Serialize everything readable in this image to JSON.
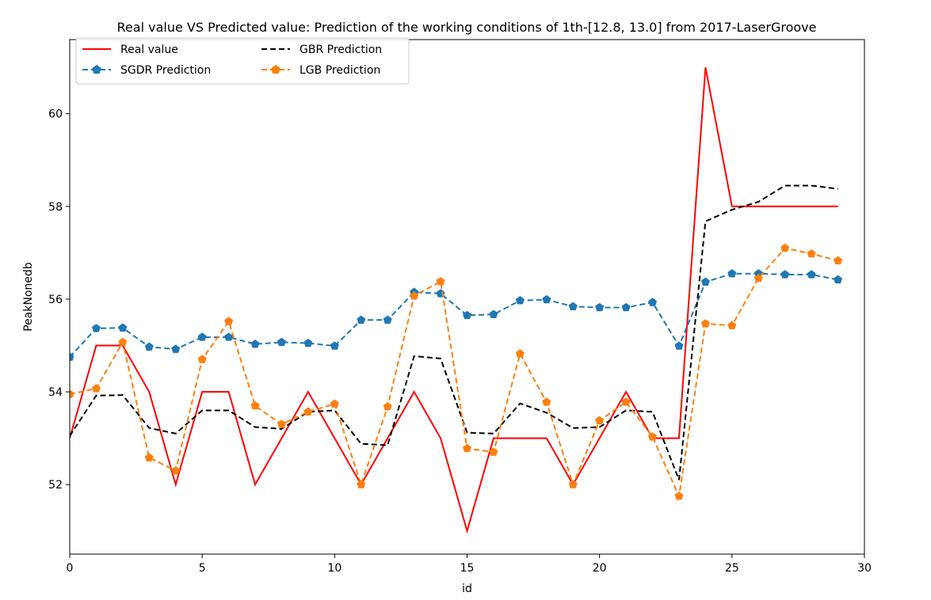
{
  "chart_data": {
    "type": "line",
    "title": "Real value VS Predicted value: Prediction of the working conditions of 1th-[12.8, 13.0] from 2017-LaserGroove",
    "xlabel": "id",
    "ylabel": "PeakNonedb",
    "xlim": [
      0,
      30
    ],
    "ylim": [
      50.5,
      61.6
    ],
    "xticks": [
      0,
      5,
      10,
      15,
      20,
      25,
      30
    ],
    "yticks": [
      52,
      54,
      56,
      58,
      60
    ],
    "legend_position": "top-left",
    "x": [
      0,
      1,
      2,
      3,
      4,
      5,
      6,
      7,
      8,
      9,
      10,
      11,
      12,
      13,
      14,
      15,
      16,
      17,
      18,
      19,
      20,
      21,
      22,
      23,
      24,
      25,
      26,
      27,
      28,
      29
    ],
    "series": [
      {
        "name": "Real value",
        "color": "#ff0000",
        "style": "solid",
        "marker": "none",
        "values": [
          53.0,
          55.0,
          55.0,
          54.0,
          52.0,
          54.0,
          54.0,
          52.0,
          53.0,
          54.0,
          53.0,
          52.0,
          53.0,
          54.0,
          53.0,
          51.0,
          53.0,
          53.0,
          53.0,
          52.0,
          53.0,
          54.0,
          53.0,
          53.0,
          61.0,
          58.0,
          58.0,
          58.0,
          58.0,
          58.0
        ]
      },
      {
        "name": "SGDR Prediction",
        "color": "#1f77b4",
        "style": "dashed",
        "marker": "pentagon",
        "values": [
          54.75,
          55.37,
          55.38,
          54.97,
          54.92,
          55.18,
          55.18,
          55.03,
          55.07,
          55.05,
          54.99,
          55.55,
          55.55,
          56.15,
          56.12,
          55.65,
          55.67,
          55.97,
          55.99,
          55.84,
          55.82,
          55.82,
          55.93,
          54.99,
          56.37,
          56.55,
          56.55,
          56.53,
          56.53,
          56.42
        ]
      },
      {
        "name": "GBR Prediction",
        "color": "#000000",
        "style": "dashed",
        "marker": "none",
        "values": [
          53.05,
          53.92,
          53.93,
          53.22,
          53.1,
          53.6,
          53.6,
          53.24,
          53.2,
          53.57,
          53.6,
          52.88,
          52.85,
          54.77,
          54.72,
          53.12,
          53.1,
          53.75,
          53.55,
          53.22,
          53.24,
          53.6,
          53.57,
          52.1,
          57.68,
          57.93,
          58.1,
          58.45,
          58.45,
          58.38
        ]
      },
      {
        "name": "LGB Prediction",
        "color": "#ff7f0e",
        "style": "dashed",
        "marker": "pentagon",
        "values": [
          53.95,
          54.07,
          55.07,
          52.58,
          52.3,
          54.7,
          55.52,
          53.7,
          53.3,
          53.57,
          53.74,
          52.0,
          53.68,
          56.07,
          56.38,
          52.78,
          52.7,
          54.82,
          53.78,
          52.0,
          53.38,
          53.78,
          53.03,
          51.75,
          55.47,
          55.43,
          56.45,
          57.1,
          56.98,
          56.83
        ]
      }
    ]
  }
}
